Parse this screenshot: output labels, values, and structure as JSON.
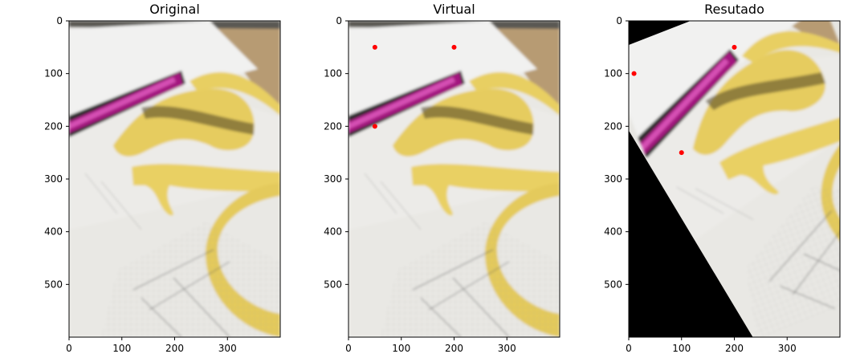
{
  "figure": {
    "panels": [
      {
        "title": "Original",
        "points": []
      },
      {
        "title": "Virtual",
        "points": [
          [
            50,
            50
          ],
          [
            200,
            50
          ],
          [
            50,
            200
          ]
        ]
      },
      {
        "title": "Resutado",
        "points": [
          [
            10,
            100
          ],
          [
            200,
            50
          ],
          [
            100,
            250
          ]
        ],
        "black_triangle": [
          [
            0,
            208
          ],
          [
            0,
            600
          ],
          [
            235,
            600
          ]
        ]
      }
    ]
  },
  "chart_data": [
    {
      "type": "scatter",
      "title": "Original",
      "xlim": [
        0,
        400
      ],
      "ylim": [
        600,
        0
      ],
      "xticks": [
        0,
        100,
        200,
        300
      ],
      "yticks": [
        0,
        100,
        200,
        300,
        400,
        500
      ],
      "points": []
    },
    {
      "type": "scatter",
      "title": "Virtual",
      "xlim": [
        0,
        400
      ],
      "ylim": [
        600,
        0
      ],
      "xticks": [
        0,
        100,
        200,
        300
      ],
      "yticks": [
        0,
        100,
        200,
        300,
        400,
        500
      ],
      "points": [
        {
          "x": 50,
          "y": 50
        },
        {
          "x": 200,
          "y": 50
        },
        {
          "x": 50,
          "y": 200
        }
      ],
      "marker_color": "#ff0000"
    },
    {
      "type": "scatter",
      "title": "Resutado",
      "xlim": [
        0,
        400
      ],
      "ylim": [
        600,
        0
      ],
      "xticks": [
        0,
        100,
        200,
        300
      ],
      "yticks": [
        0,
        100,
        200,
        300,
        400,
        500
      ],
      "points": [
        {
          "x": 10,
          "y": 100
        },
        {
          "x": 200,
          "y": 50
        },
        {
          "x": 100,
          "y": 250
        }
      ],
      "marker_color": "#ff0000"
    }
  ],
  "colors": {
    "marker": "#ff0000",
    "paper": "#e8e6e1",
    "tape": "#e2c85a",
    "marker_pen": "#a0197f",
    "wood": "#b89a70"
  }
}
